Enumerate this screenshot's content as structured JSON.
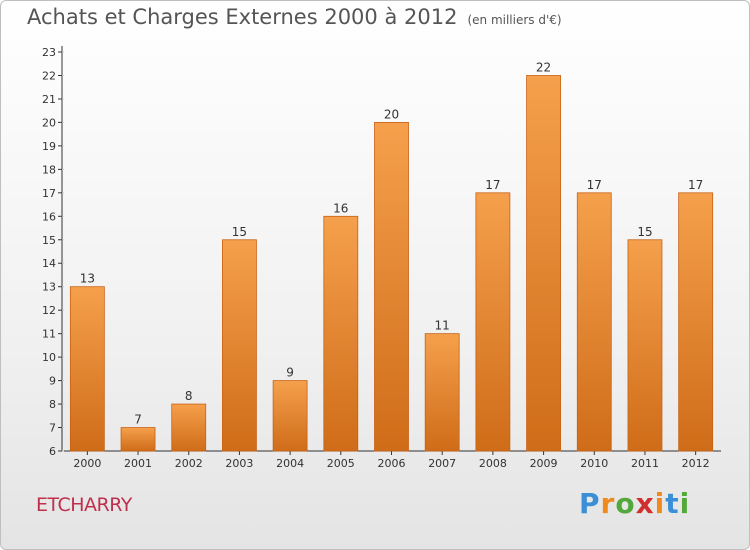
{
  "header": {
    "title": "Achats et Charges Externes 2000 à 2012",
    "unit": "(en milliers d'€)"
  },
  "footer": {
    "commune": "ETCHARRY",
    "brand": [
      "P",
      "r",
      "o",
      "x",
      "i",
      "t",
      "i"
    ],
    "brand_colors": [
      "#3a8fd6",
      "#f08a1d",
      "#53a83a",
      "#d12f2f",
      "#f08a1d",
      "#3a8fd6",
      "#53a83a"
    ]
  },
  "colors": {
    "bar_top": "#f5a04c",
    "bar_bottom": "#cf6c19",
    "bar_edge": "#c86214",
    "axis": "#333333",
    "grid_dash": "#cccccc"
  },
  "chart_data": {
    "type": "bar",
    "categories": [
      "2000",
      "2001",
      "2002",
      "2003",
      "2004",
      "2005",
      "2006",
      "2007",
      "2008",
      "2009",
      "2010",
      "2011",
      "2012"
    ],
    "values": [
      13,
      7,
      8,
      15,
      9,
      16,
      20,
      11,
      17,
      22,
      17,
      15,
      17
    ],
    "ylim": [
      6,
      23
    ],
    "yticks": [
      6,
      7,
      8,
      9,
      10,
      11,
      12,
      13,
      14,
      15,
      16,
      17,
      18,
      19,
      20,
      21,
      22,
      23
    ],
    "data_labels": [
      "13",
      "7",
      "8",
      "15",
      "9",
      "16",
      "20",
      "11",
      "17",
      "22",
      "17",
      "15",
      "17"
    ]
  }
}
